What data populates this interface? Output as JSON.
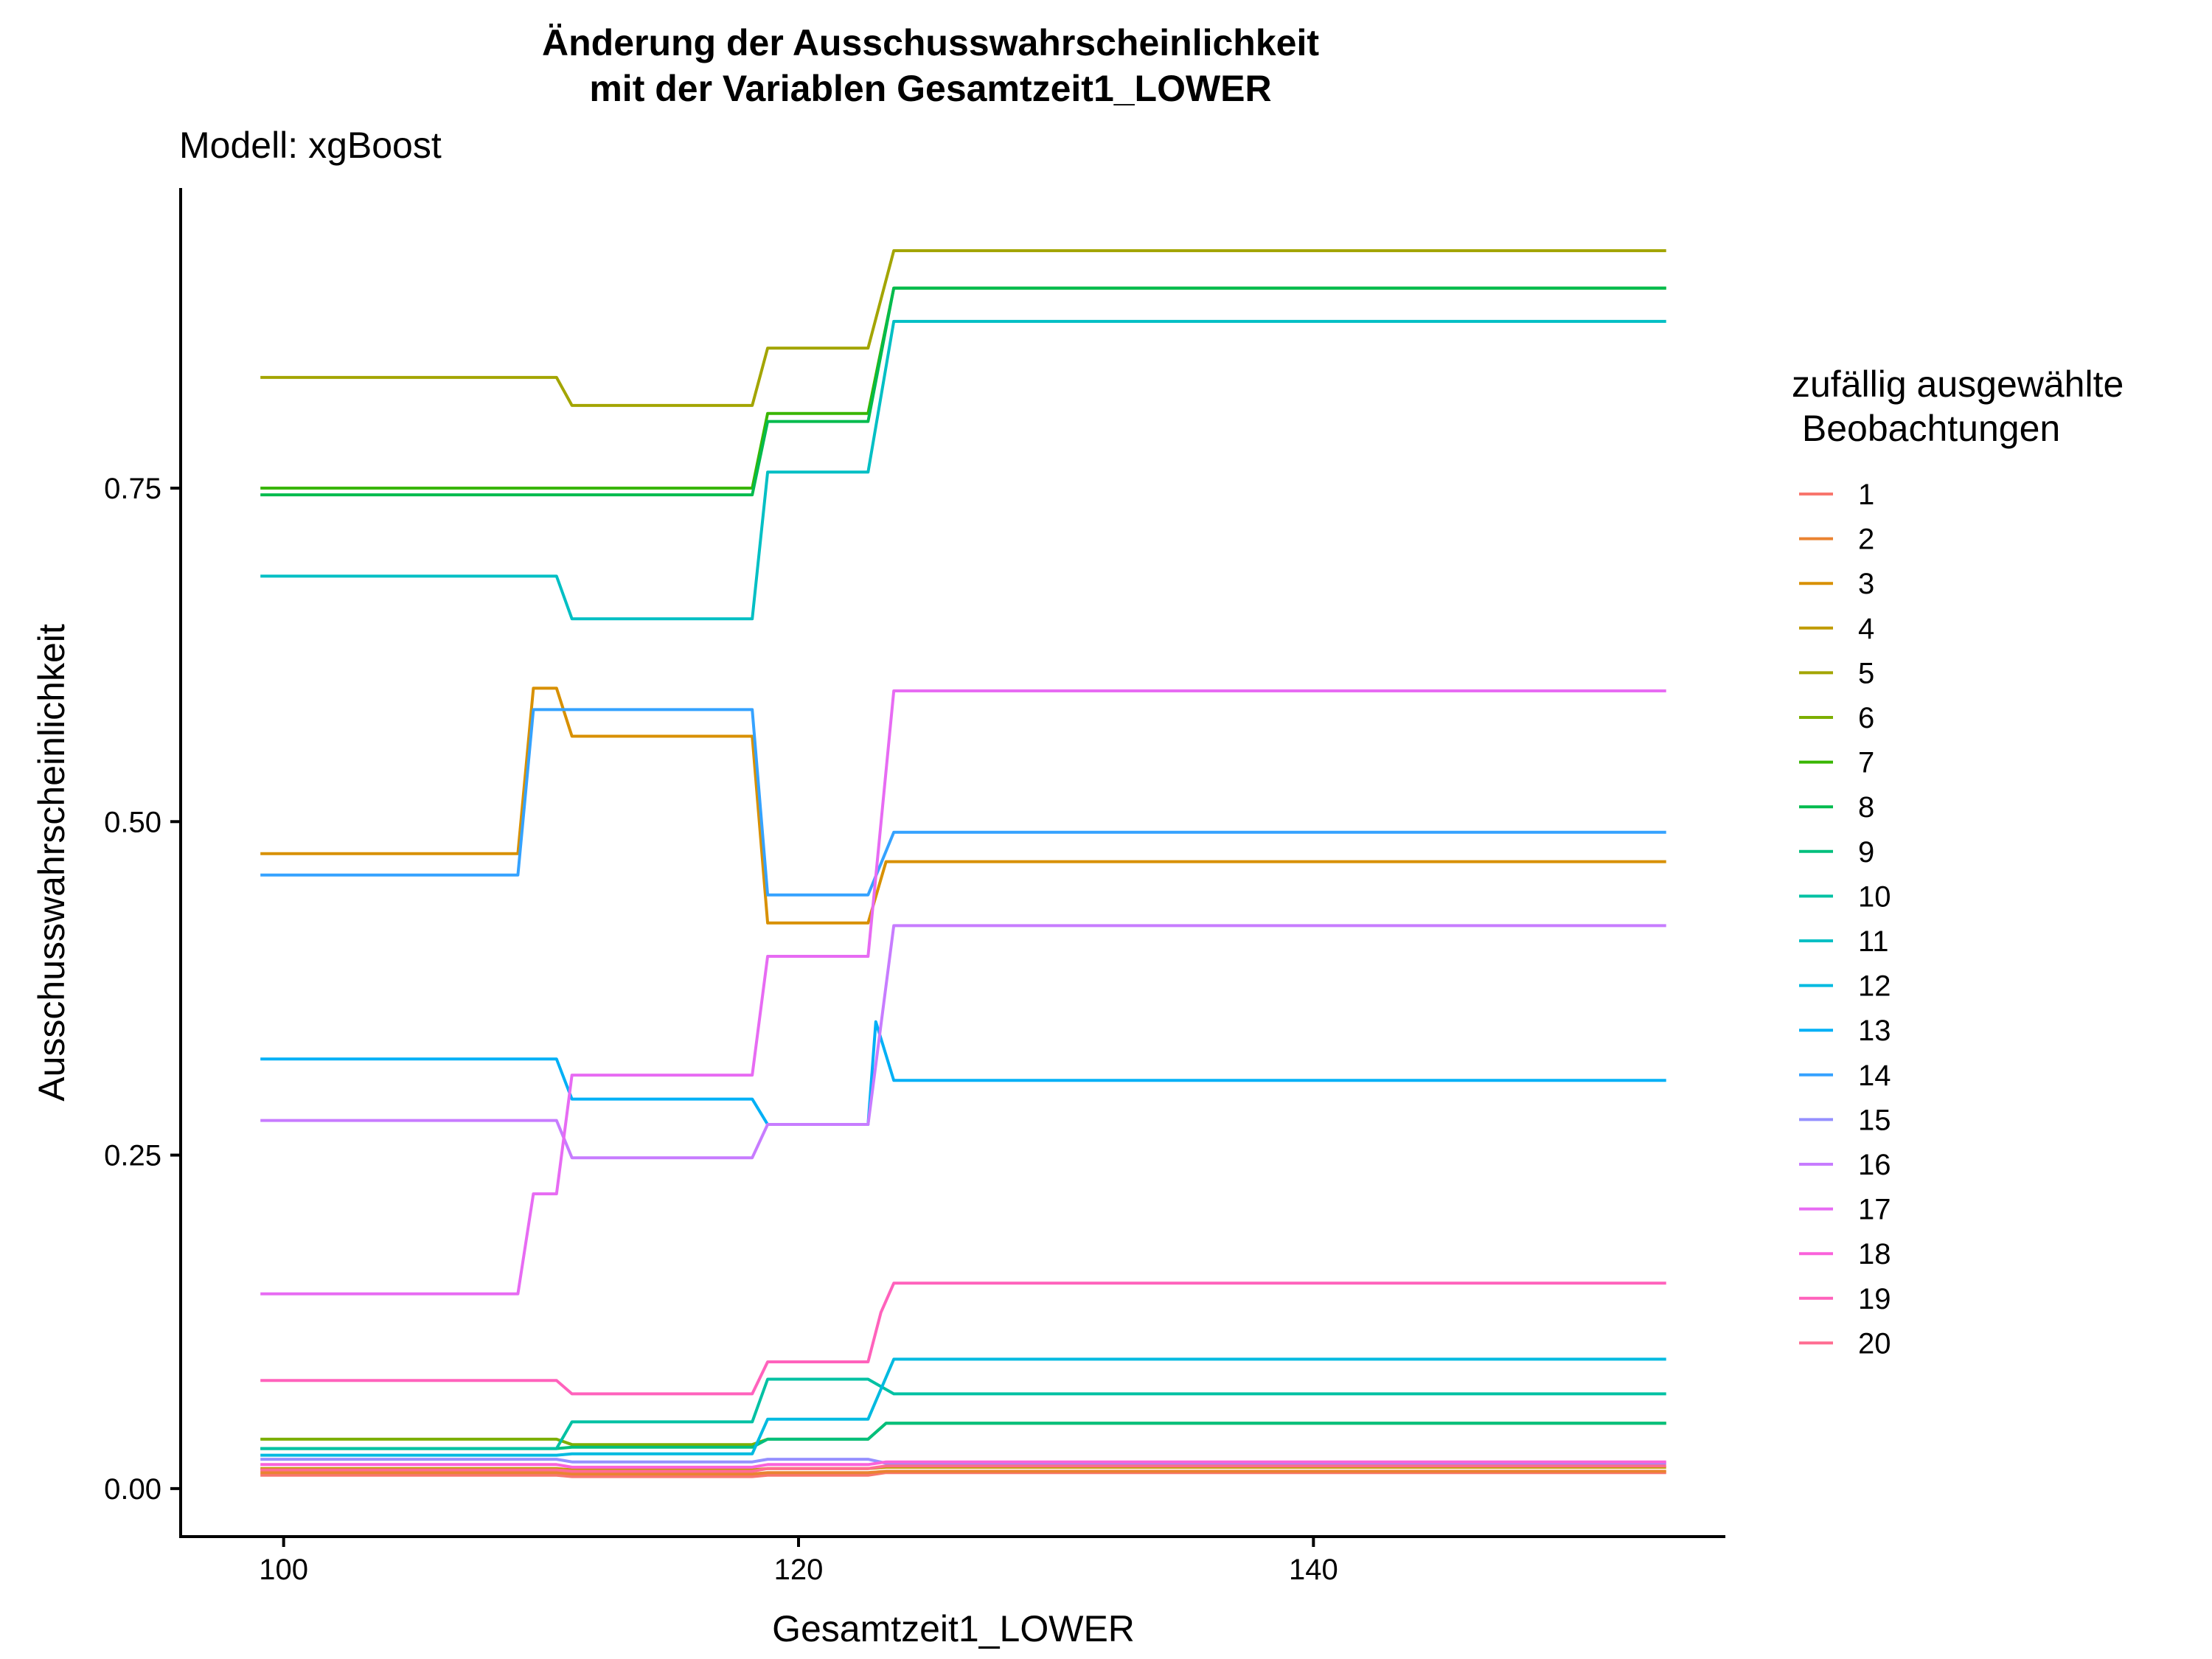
{
  "chart_data": {
    "type": "line",
    "title": [
      "Änderung der Ausschusswahrscheinlichkeit",
      "mit der Variablen Gesamtzeit1_LOWER"
    ],
    "subtitle": "Modell: xgBoost",
    "xlabel": "Gesamtzeit1_LOWER",
    "ylabel": "Ausschusswahrscheinlichkeit",
    "xlim": [
      96,
      156
    ],
    "ylim": [
      -0.036,
      0.975
    ],
    "xticks": [
      100,
      120,
      140
    ],
    "xtick_labels": [
      "100",
      "120",
      "140"
    ],
    "yticks": [
      0,
      0.25,
      0.5,
      0.75
    ],
    "ytick_labels": [
      "0.00",
      "0.25",
      "0.50",
      "0.75"
    ],
    "grid": false,
    "legend": {
      "title": [
        "zufällig ausgewählte",
        " Beobachtungen"
      ],
      "position": "right"
    },
    "series": [
      {
        "name": "1",
        "color": "#F8766D",
        "points": [
          [
            99.1,
            0.01
          ],
          [
            110.6,
            0.01
          ],
          [
            111.2,
            0.009
          ],
          [
            118.2,
            0.009
          ],
          [
            118.8,
            0.01
          ],
          [
            122.7,
            0.01
          ],
          [
            123.4,
            0.012
          ],
          [
            153.7,
            0.012
          ]
        ]
      },
      {
        "name": "2",
        "color": "#EA8331",
        "points": [
          [
            99.1,
            0.012
          ],
          [
            110.6,
            0.012
          ],
          [
            111.2,
            0.011
          ],
          [
            118.2,
            0.011
          ],
          [
            118.8,
            0.012
          ],
          [
            122.7,
            0.012
          ],
          [
            123.4,
            0.013
          ],
          [
            153.7,
            0.013
          ]
        ]
      },
      {
        "name": "3",
        "color": "#D89000",
        "points": [
          [
            99.1,
            0.476
          ],
          [
            109.1,
            0.476
          ],
          [
            109.7,
            0.6
          ],
          [
            110.6,
            0.6
          ],
          [
            111.2,
            0.564
          ],
          [
            118.2,
            0.564
          ],
          [
            118.8,
            0.424
          ],
          [
            122.7,
            0.424
          ],
          [
            123.4,
            0.47
          ],
          [
            153.7,
            0.47
          ]
        ]
      },
      {
        "name": "4",
        "color": "#C09B00",
        "points": [
          [
            99.1,
            0.015
          ],
          [
            110.6,
            0.015
          ],
          [
            111.2,
            0.014
          ],
          [
            118.2,
            0.014
          ],
          [
            118.8,
            0.015
          ],
          [
            122.7,
            0.015
          ],
          [
            123.4,
            0.016
          ],
          [
            153.7,
            0.016
          ]
        ]
      },
      {
        "name": "5",
        "color": "#A3A500",
        "points": [
          [
            99.1,
            0.833
          ],
          [
            110.6,
            0.833
          ],
          [
            111.2,
            0.812
          ],
          [
            118.2,
            0.812
          ],
          [
            118.8,
            0.855
          ],
          [
            122.7,
            0.855
          ],
          [
            123.7,
            0.928
          ],
          [
            153.7,
            0.928
          ]
        ]
      },
      {
        "name": "6",
        "color": "#7CAE00",
        "points": [
          [
            99.1,
            0.037
          ],
          [
            110.6,
            0.037
          ],
          [
            111.2,
            0.033
          ],
          [
            118.2,
            0.033
          ],
          [
            118.8,
            0.037
          ],
          [
            122.7,
            0.037
          ],
          [
            123.4,
            0.049
          ],
          [
            153.7,
            0.049
          ]
        ]
      },
      {
        "name": "7",
        "color": "#39B600",
        "points": [
          [
            99.1,
            0.75
          ],
          [
            118.2,
            0.75
          ],
          [
            118.8,
            0.806
          ],
          [
            122.7,
            0.806
          ],
          [
            123.7,
            0.9
          ],
          [
            153.7,
            0.9
          ]
        ]
      },
      {
        "name": "8",
        "color": "#00BB4E",
        "points": [
          [
            99.1,
            0.745
          ],
          [
            118.2,
            0.745
          ],
          [
            118.8,
            0.8
          ],
          [
            122.7,
            0.8
          ],
          [
            123.7,
            0.9
          ],
          [
            153.7,
            0.9
          ]
        ]
      },
      {
        "name": "9",
        "color": "#00BF7D",
        "points": [
          [
            99.1,
            0.03
          ],
          [
            110.6,
            0.03
          ],
          [
            111.2,
            0.031
          ],
          [
            118.2,
            0.031
          ],
          [
            118.8,
            0.037
          ],
          [
            122.7,
            0.037
          ],
          [
            123.4,
            0.049
          ],
          [
            153.7,
            0.049
          ]
        ]
      },
      {
        "name": "10",
        "color": "#00C1A3",
        "points": [
          [
            99.1,
            0.03
          ],
          [
            110.6,
            0.03
          ],
          [
            111.2,
            0.05
          ],
          [
            118.2,
            0.05
          ],
          [
            118.8,
            0.082
          ],
          [
            122.7,
            0.082
          ],
          [
            123.7,
            0.071
          ],
          [
            153.7,
            0.071
          ]
        ]
      },
      {
        "name": "11",
        "color": "#00BFC4",
        "points": [
          [
            99.1,
            0.684
          ],
          [
            110.6,
            0.684
          ],
          [
            111.2,
            0.652
          ],
          [
            118.2,
            0.652
          ],
          [
            118.8,
            0.762
          ],
          [
            122.7,
            0.762
          ],
          [
            123.7,
            0.875
          ],
          [
            153.7,
            0.875
          ]
        ]
      },
      {
        "name": "12",
        "color": "#00BAE0",
        "points": [
          [
            99.1,
            0.025
          ],
          [
            110.6,
            0.025
          ],
          [
            111.2,
            0.026
          ],
          [
            118.2,
            0.026
          ],
          [
            118.8,
            0.052
          ],
          [
            122.7,
            0.052
          ],
          [
            123.7,
            0.097
          ],
          [
            153.7,
            0.097
          ]
        ]
      },
      {
        "name": "13",
        "color": "#00B0F6",
        "points": [
          [
            99.1,
            0.322
          ],
          [
            110.6,
            0.322
          ],
          [
            111.2,
            0.292
          ],
          [
            118.2,
            0.292
          ],
          [
            118.8,
            0.273
          ],
          [
            122.7,
            0.273
          ],
          [
            123.0,
            0.35
          ],
          [
            123.7,
            0.306
          ],
          [
            153.7,
            0.306
          ]
        ]
      },
      {
        "name": "14",
        "color": "#35A2FF",
        "points": [
          [
            99.1,
            0.46
          ],
          [
            109.1,
            0.46
          ],
          [
            109.7,
            0.584
          ],
          [
            118.2,
            0.584
          ],
          [
            118.8,
            0.445
          ],
          [
            122.7,
            0.445
          ],
          [
            123.7,
            0.492
          ],
          [
            153.7,
            0.492
          ]
        ]
      },
      {
        "name": "15",
        "color": "#9590FF",
        "points": [
          [
            99.1,
            0.022
          ],
          [
            110.6,
            0.022
          ],
          [
            111.2,
            0.02
          ],
          [
            118.2,
            0.02
          ],
          [
            118.8,
            0.022
          ],
          [
            122.7,
            0.022
          ],
          [
            123.4,
            0.019
          ],
          [
            153.7,
            0.019
          ]
        ]
      },
      {
        "name": "16",
        "color": "#C77CFF",
        "points": [
          [
            99.1,
            0.276
          ],
          [
            110.6,
            0.276
          ],
          [
            111.2,
            0.248
          ],
          [
            118.2,
            0.248
          ],
          [
            118.8,
            0.273
          ],
          [
            122.7,
            0.273
          ],
          [
            123.7,
            0.422
          ],
          [
            153.7,
            0.422
          ]
        ]
      },
      {
        "name": "17",
        "color": "#E76BF3",
        "points": [
          [
            99.1,
            0.146
          ],
          [
            109.1,
            0.146
          ],
          [
            109.7,
            0.221
          ],
          [
            110.6,
            0.221
          ],
          [
            111.2,
            0.31
          ],
          [
            118.2,
            0.31
          ],
          [
            118.8,
            0.399
          ],
          [
            122.7,
            0.399
          ],
          [
            123.7,
            0.598
          ],
          [
            153.7,
            0.598
          ]
        ]
      },
      {
        "name": "18",
        "color": "#FA62DB",
        "points": [
          [
            99.1,
            0.018
          ],
          [
            110.6,
            0.018
          ],
          [
            111.2,
            0.016
          ],
          [
            118.2,
            0.016
          ],
          [
            118.8,
            0.018
          ],
          [
            122.7,
            0.018
          ],
          [
            123.4,
            0.02
          ],
          [
            153.7,
            0.02
          ]
        ]
      },
      {
        "name": "19",
        "color": "#FF62BC",
        "points": [
          [
            99.1,
            0.081
          ],
          [
            110.6,
            0.081
          ],
          [
            111.2,
            0.071
          ],
          [
            118.2,
            0.071
          ],
          [
            118.8,
            0.095
          ],
          [
            122.7,
            0.095
          ],
          [
            123.2,
            0.132
          ],
          [
            123.7,
            0.154
          ],
          [
            153.7,
            0.154
          ]
        ]
      },
      {
        "name": "20",
        "color": "#FF6C91",
        "points": [
          [
            99.1,
            0.014
          ],
          [
            110.6,
            0.014
          ],
          [
            111.2,
            0.013
          ],
          [
            118.2,
            0.013
          ],
          [
            118.8,
            0.015
          ],
          [
            122.7,
            0.015
          ],
          [
            123.4,
            0.017
          ],
          [
            153.7,
            0.017
          ]
        ]
      }
    ]
  }
}
